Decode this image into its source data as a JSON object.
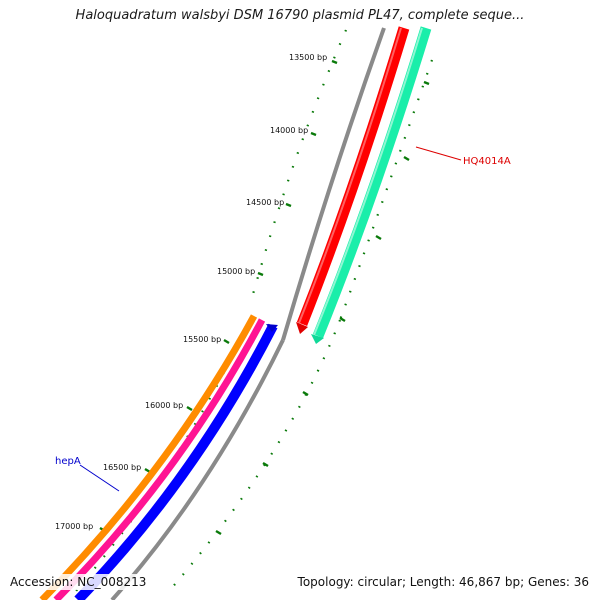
{
  "title": "Haloquadratum walsbyi DSM 16790 plasmid PL47, complete seque...",
  "footer": {
    "accession": "Accession: NC_008213",
    "summary": "Topology: circular; Length: 46,867 bp; Genes: 36"
  },
  "map": {
    "topology": "circular",
    "length_bp": 46867,
    "ruler_labels": [
      "13500 bp",
      "14000 bp",
      "14500 bp",
      "15000 bp",
      "15500 bp",
      "16000 bp",
      "16500 bp",
      "17000 bp"
    ],
    "features": [
      {
        "label": "HQ4014A",
        "strand": "forward",
        "color": "#ff0000"
      },
      {
        "label": "",
        "strand": "forward",
        "color": "#1aeeaa"
      },
      {
        "label": "hepA",
        "strand": "reverse",
        "color": "#0000ff"
      },
      {
        "label": "",
        "strand": "reverse",
        "color": "#ff1493"
      },
      {
        "label": "",
        "strand": "reverse",
        "color": "#ff8c00"
      }
    ],
    "colors": {
      "backbone": "#8a8a8a",
      "ticks": "#0a7a0a",
      "label_HQ4014A": "#dd0000",
      "label_hepA": "#0000cc"
    }
  }
}
